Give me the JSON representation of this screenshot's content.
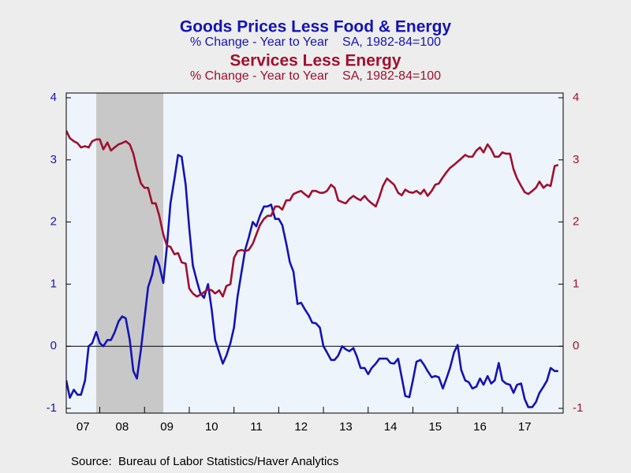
{
  "chart_data": {
    "type": "line",
    "source": "Source:  Bureau of Labor Statistics/Haver Analytics",
    "xlim": [
      2007.25,
      2018.36
    ],
    "xticks": [
      {
        "value": 2007,
        "label": "07"
      },
      {
        "value": 2008,
        "label": "08"
      },
      {
        "value": 2009,
        "label": "09"
      },
      {
        "value": 2010,
        "label": "10"
      },
      {
        "value": 2011,
        "label": "11"
      },
      {
        "value": 2012,
        "label": "12"
      },
      {
        "value": 2013,
        "label": "13"
      },
      {
        "value": 2014,
        "label": "14"
      },
      {
        "value": 2015,
        "label": "15"
      },
      {
        "value": 2016,
        "label": "16"
      },
      {
        "value": 2017,
        "label": "17"
      }
    ],
    "ylim": [
      -1,
      4
    ],
    "yticks": [
      -1,
      0,
      1,
      2,
      3,
      4
    ],
    "y2lim": [
      -1,
      4
    ],
    "y2ticks": [
      -1,
      0,
      1,
      2,
      3,
      4
    ],
    "shade": [
      2007.92,
      2009.42
    ],
    "x": [
      2007.25,
      2007.33,
      2007.42,
      2007.5,
      2007.58,
      2007.67,
      2007.75,
      2007.83,
      2007.92,
      2008,
      2008.08,
      2008.17,
      2008.25,
      2008.33,
      2008.42,
      2008.5,
      2008.58,
      2008.67,
      2008.75,
      2008.83,
      2008.92,
      2009,
      2009.08,
      2009.17,
      2009.25,
      2009.33,
      2009.42,
      2009.5,
      2009.58,
      2009.67,
      2009.75,
      2009.83,
      2009.92,
      2010,
      2010.08,
      2010.17,
      2010.25,
      2010.33,
      2010.42,
      2010.5,
      2010.58,
      2010.67,
      2010.75,
      2010.83,
      2010.92,
      2011,
      2011.08,
      2011.17,
      2011.25,
      2011.33,
      2011.42,
      2011.5,
      2011.58,
      2011.67,
      2011.75,
      2011.83,
      2011.92,
      2012,
      2012.08,
      2012.17,
      2012.25,
      2012.33,
      2012.42,
      2012.5,
      2012.58,
      2012.67,
      2012.75,
      2012.83,
      2012.92,
      2013,
      2013.08,
      2013.17,
      2013.25,
      2013.33,
      2013.42,
      2013.5,
      2013.58,
      2013.67,
      2013.75,
      2013.83,
      2013.92,
      2014,
      2014.08,
      2014.17,
      2014.25,
      2014.33,
      2014.42,
      2014.5,
      2014.58,
      2014.67,
      2014.75,
      2014.83,
      2014.92,
      2015,
      2015.08,
      2015.17,
      2015.25,
      2015.33,
      2015.42,
      2015.5,
      2015.58,
      2015.67,
      2015.75,
      2015.83,
      2015.92,
      2016,
      2016.08,
      2016.17,
      2016.25,
      2016.33,
      2016.42,
      2016.5,
      2016.58,
      2016.67,
      2016.75,
      2016.83,
      2016.92,
      2017,
      2017.08,
      2017.17,
      2017.25,
      2017.33,
      2017.42,
      2017.5,
      2017.58,
      2017.67,
      2017.75,
      2017.83,
      2017.92,
      2018,
      2018.08,
      2018.17,
      2018.25
    ],
    "series": [
      {
        "name": "Goods Prices Less Food & Energy",
        "subtitle": "% Change - Year to Year    SA, 1982-84=100",
        "color": "#1414b4",
        "axis": "y",
        "values": [
          -0.55,
          -0.83,
          -0.7,
          -0.78,
          -0.78,
          -0.55,
          0,
          0.05,
          0.23,
          0.05,
          0,
          0.1,
          0.1,
          0.22,
          0.4,
          0.48,
          0.45,
          0.1,
          -0.4,
          -0.52,
          -0.05,
          0.45,
          0.95,
          1.15,
          1.45,
          1.3,
          1.02,
          1.6,
          2.3,
          2.7,
          3.08,
          3.05,
          2.6,
          1.9,
          1.3,
          1.05,
          0.85,
          0.78,
          1.0,
          0.6,
          0.1,
          -0.1,
          -0.28,
          -0.15,
          0.05,
          0.3,
          0.8,
          1.2,
          1.55,
          1.75,
          2.0,
          1.93,
          2.1,
          2.25,
          2.25,
          2.28,
          2.05,
          2.05,
          1.95,
          1.65,
          1.35,
          1.2,
          0.68,
          0.7,
          0.6,
          0.5,
          0.38,
          0.37,
          0.3,
          0,
          -0.1,
          -0.22,
          -0.22,
          -0.15,
          0,
          -0.05,
          -0.08,
          -0.03,
          -0.17,
          -0.35,
          -0.35,
          -0.45,
          -0.35,
          -0.28,
          -0.2,
          -0.2,
          -0.2,
          -0.27,
          -0.28,
          -0.2,
          -0.5,
          -0.8,
          -0.82,
          -0.55,
          -0.25,
          -0.22,
          -0.3,
          -0.4,
          -0.5,
          -0.48,
          -0.5,
          -0.68,
          -0.52,
          -0.35,
          -0.1,
          0.02,
          -0.38,
          -0.55,
          -0.58,
          -0.68,
          -0.65,
          -0.52,
          -0.62,
          -0.48,
          -0.6,
          -0.55,
          -0.27,
          -0.55,
          -0.6,
          -0.62,
          -0.75,
          -0.62,
          -0.6,
          -0.85,
          -0.98,
          -0.98,
          -0.9,
          -0.75,
          -0.65,
          -0.55,
          -0.35,
          -0.4,
          -0.4
        ]
      },
      {
        "name": "Services Less Energy",
        "subtitle": "% Change - Year to Year    SA, 1982-84=100",
        "color": "#a0102e",
        "axis": "y2",
        "values": [
          3.47,
          3.35,
          3.3,
          3.27,
          3.2,
          3.22,
          3.2,
          3.3,
          3.33,
          3.33,
          3.17,
          3.28,
          3.15,
          3.2,
          3.25,
          3.27,
          3.3,
          3.25,
          3.1,
          2.85,
          2.62,
          2.55,
          2.55,
          2.3,
          2.3,
          2.1,
          1.8,
          1.62,
          1.6,
          1.48,
          1.5,
          1.35,
          1.33,
          0.93,
          0.85,
          0.8,
          0.83,
          0.87,
          0.92,
          0.9,
          0.85,
          0.9,
          0.8,
          0.97,
          1.0,
          1.42,
          1.53,
          1.55,
          1.53,
          1.55,
          1.65,
          1.8,
          1.95,
          2.05,
          2.1,
          2.1,
          2.25,
          2.25,
          2.2,
          2.35,
          2.35,
          2.45,
          2.48,
          2.5,
          2.45,
          2.4,
          2.5,
          2.5,
          2.47,
          2.47,
          2.5,
          2.6,
          2.55,
          2.35,
          2.32,
          2.3,
          2.37,
          2.42,
          2.38,
          2.35,
          2.42,
          2.35,
          2.3,
          2.25,
          2.4,
          2.58,
          2.7,
          2.65,
          2.6,
          2.47,
          2.43,
          2.52,
          2.48,
          2.47,
          2.5,
          2.45,
          2.52,
          2.42,
          2.5,
          2.6,
          2.62,
          2.72,
          2.8,
          2.87,
          2.92,
          2.97,
          3.02,
          3.08,
          3.05,
          3.05,
          3.15,
          3.2,
          3.12,
          3.25,
          3.17,
          3.05,
          3.05,
          3.12,
          3.1,
          3.1,
          2.85,
          2.7,
          2.58,
          2.48,
          2.45,
          2.5,
          2.55,
          2.65,
          2.55,
          2.6,
          2.58,
          2.9,
          2.92
        ]
      }
    ]
  }
}
